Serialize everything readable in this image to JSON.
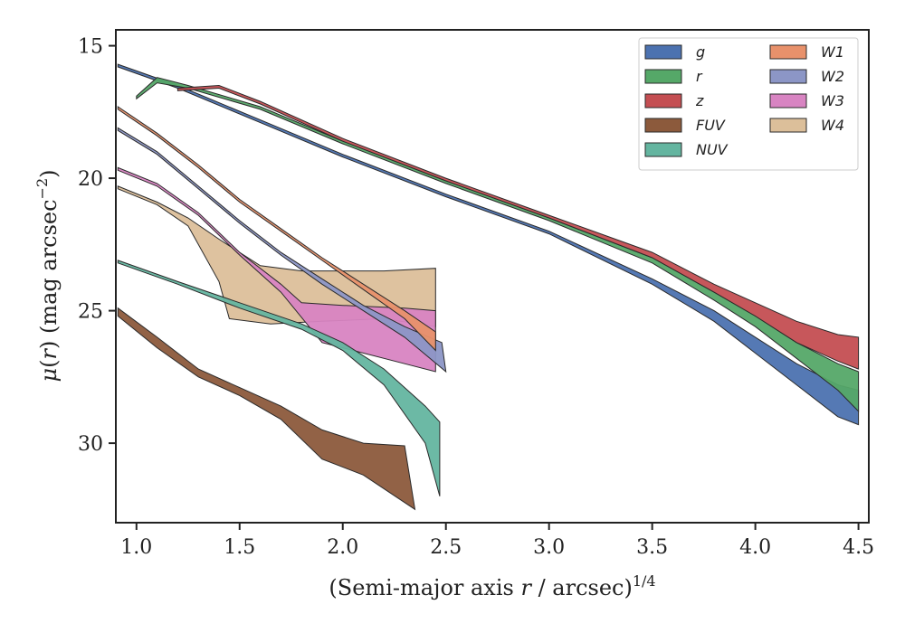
{
  "chart_data": {
    "type": "area",
    "xlabel": "(Semi-major axis r / arcsec)^1/4",
    "xlabel_parts": {
      "pre": "(Semi-major axis ",
      "var": "r",
      "post": " / arcsec)",
      "sup": "1/4"
    },
    "ylabel": "μ(r) (mag arcsec^−2)",
    "ylabel_parts": {
      "mu": "μ",
      "open": "(",
      "var": "r",
      "close": ") (mag arcsec",
      "sup": "−2",
      "end": ")"
    },
    "xlim": [
      0.9,
      4.55
    ],
    "ylim": [
      33.0,
      14.4
    ],
    "y_inverted": true,
    "xticks": [
      "1.0",
      "1.5",
      "2.0",
      "2.5",
      "3.0",
      "3.5",
      "4.0",
      "4.5"
    ],
    "xtick_values": [
      1.0,
      1.5,
      2.0,
      2.5,
      3.0,
      3.5,
      4.0,
      4.5
    ],
    "yticks": [
      "15",
      "20",
      "25",
      "30"
    ],
    "ytick_values": [
      15,
      20,
      25,
      30
    ],
    "grid": false,
    "legend_position": "top-right",
    "legend_columns": 2,
    "series": [
      {
        "name": "g",
        "color": "#4c72b0",
        "upper": [
          [
            0.91,
            15.7
          ],
          [
            1.2,
            16.5
          ],
          [
            1.6,
            17.8
          ],
          [
            2.0,
            19.1
          ],
          [
            2.5,
            20.6
          ],
          [
            3.0,
            22.0
          ],
          [
            3.5,
            23.8
          ],
          [
            3.8,
            25.0
          ],
          [
            4.0,
            26.0
          ],
          [
            4.2,
            27.0
          ],
          [
            4.4,
            27.8
          ],
          [
            4.5,
            28.0
          ]
        ],
        "lower": [
          [
            0.91,
            15.8
          ],
          [
            1.2,
            16.6
          ],
          [
            1.6,
            17.9
          ],
          [
            2.0,
            19.2
          ],
          [
            2.5,
            20.7
          ],
          [
            3.0,
            22.1
          ],
          [
            3.5,
            24.0
          ],
          [
            3.8,
            25.4
          ],
          [
            4.0,
            26.6
          ],
          [
            4.2,
            27.8
          ],
          [
            4.4,
            29.0
          ],
          [
            4.5,
            29.3
          ]
        ]
      },
      {
        "name": "r",
        "color": "#55a868",
        "upper": [
          [
            1.0,
            16.9
          ],
          [
            1.1,
            16.2
          ],
          [
            1.25,
            16.5
          ],
          [
            1.6,
            17.3
          ],
          [
            2.0,
            18.6
          ],
          [
            2.5,
            20.1
          ],
          [
            3.0,
            21.5
          ],
          [
            3.5,
            23.0
          ],
          [
            3.8,
            24.3
          ],
          [
            4.0,
            25.2
          ],
          [
            4.2,
            26.2
          ],
          [
            4.4,
            27.0
          ],
          [
            4.5,
            27.3
          ]
        ],
        "lower": [
          [
            1.0,
            17.0
          ],
          [
            1.1,
            16.4
          ],
          [
            1.25,
            16.6
          ],
          [
            1.6,
            17.4
          ],
          [
            2.0,
            18.7
          ],
          [
            2.5,
            20.2
          ],
          [
            3.0,
            21.6
          ],
          [
            3.5,
            23.2
          ],
          [
            3.8,
            24.6
          ],
          [
            4.0,
            25.6
          ],
          [
            4.2,
            26.8
          ],
          [
            4.4,
            28.0
          ],
          [
            4.5,
            28.8
          ]
        ]
      },
      {
        "name": "z",
        "color": "#c44e52",
        "upper": [
          [
            1.2,
            16.6
          ],
          [
            1.4,
            16.5
          ],
          [
            1.6,
            17.1
          ],
          [
            2.0,
            18.5
          ],
          [
            2.5,
            20.0
          ],
          [
            3.0,
            21.4
          ],
          [
            3.5,
            22.8
          ],
          [
            3.8,
            24.0
          ],
          [
            4.0,
            24.7
          ],
          [
            4.2,
            25.4
          ],
          [
            4.4,
            25.9
          ],
          [
            4.5,
            26.0
          ]
        ],
        "lower": [
          [
            1.2,
            16.7
          ],
          [
            1.4,
            16.6
          ],
          [
            1.6,
            17.2
          ],
          [
            2.0,
            18.6
          ],
          [
            2.5,
            20.1
          ],
          [
            3.0,
            21.5
          ],
          [
            3.5,
            23.0
          ],
          [
            3.8,
            24.3
          ],
          [
            4.0,
            25.2
          ],
          [
            4.2,
            26.2
          ],
          [
            4.4,
            26.9
          ],
          [
            4.5,
            27.2
          ]
        ]
      },
      {
        "name": "FUV",
        "color": "#8c5a3c",
        "upper": [
          [
            0.91,
            24.9
          ],
          [
            1.1,
            26.0
          ],
          [
            1.3,
            27.2
          ],
          [
            1.5,
            27.9
          ],
          [
            1.7,
            28.6
          ],
          [
            1.9,
            29.5
          ],
          [
            2.1,
            30.0
          ],
          [
            2.3,
            30.1
          ]
        ],
        "lower": [
          [
            0.91,
            25.2
          ],
          [
            1.1,
            26.4
          ],
          [
            1.3,
            27.5
          ],
          [
            1.5,
            28.2
          ],
          [
            1.7,
            29.1
          ],
          [
            1.9,
            30.6
          ],
          [
            2.1,
            31.2
          ],
          [
            2.35,
            32.5
          ]
        ]
      },
      {
        "name": "NUV",
        "color": "#64b5a0",
        "upper": [
          [
            0.91,
            23.1
          ],
          [
            1.2,
            23.9
          ],
          [
            1.5,
            24.7
          ],
          [
            1.8,
            25.5
          ],
          [
            2.0,
            26.2
          ],
          [
            2.2,
            27.2
          ],
          [
            2.4,
            28.6
          ],
          [
            2.47,
            29.2
          ]
        ],
        "lower": [
          [
            0.91,
            23.2
          ],
          [
            1.2,
            24.0
          ],
          [
            1.5,
            24.9
          ],
          [
            1.8,
            25.7
          ],
          [
            2.0,
            26.5
          ],
          [
            2.2,
            27.8
          ],
          [
            2.4,
            30.0
          ],
          [
            2.47,
            32.0
          ]
        ]
      },
      {
        "name": "W1",
        "color": "#e8916b",
        "upper": [
          [
            0.91,
            17.3
          ],
          [
            1.1,
            18.3
          ],
          [
            1.3,
            19.5
          ],
          [
            1.5,
            20.8
          ],
          [
            1.7,
            21.9
          ],
          [
            1.9,
            23.0
          ],
          [
            2.1,
            24.0
          ],
          [
            2.3,
            25.0
          ],
          [
            2.45,
            25.8
          ]
        ],
        "lower": [
          [
            0.91,
            17.4
          ],
          [
            1.1,
            18.4
          ],
          [
            1.3,
            19.6
          ],
          [
            1.5,
            20.9
          ],
          [
            1.7,
            22.0
          ],
          [
            1.9,
            23.1
          ],
          [
            2.1,
            24.2
          ],
          [
            2.3,
            25.3
          ],
          [
            2.45,
            26.5
          ]
        ]
      },
      {
        "name": "W2",
        "color": "#8c96c6",
        "upper": [
          [
            0.91,
            18.1
          ],
          [
            1.1,
            19.0
          ],
          [
            1.3,
            20.3
          ],
          [
            1.5,
            21.6
          ],
          [
            1.7,
            22.8
          ],
          [
            1.9,
            23.8
          ],
          [
            2.1,
            24.8
          ],
          [
            2.3,
            25.6
          ],
          [
            2.48,
            26.2
          ]
        ],
        "lower": [
          [
            0.91,
            18.2
          ],
          [
            1.1,
            19.1
          ],
          [
            1.3,
            20.4
          ],
          [
            1.5,
            21.7
          ],
          [
            1.7,
            22.9
          ],
          [
            1.9,
            24.0
          ],
          [
            2.1,
            25.0
          ],
          [
            2.3,
            26.0
          ],
          [
            2.5,
            27.3
          ]
        ]
      },
      {
        "name": "W3",
        "color": "#d884c2",
        "upper": [
          [
            0.91,
            19.6
          ],
          [
            1.1,
            20.2
          ],
          [
            1.3,
            21.3
          ],
          [
            1.5,
            22.8
          ],
          [
            1.7,
            24.0
          ],
          [
            1.8,
            24.7
          ],
          [
            2.0,
            24.8
          ],
          [
            2.3,
            24.9
          ],
          [
            2.45,
            25.0
          ]
        ],
        "lower": [
          [
            0.91,
            19.7
          ],
          [
            1.1,
            20.3
          ],
          [
            1.3,
            21.4
          ],
          [
            1.5,
            22.9
          ],
          [
            1.7,
            24.3
          ],
          [
            1.9,
            26.2
          ],
          [
            2.05,
            26.5
          ],
          [
            2.3,
            27.0
          ],
          [
            2.45,
            27.3
          ]
        ]
      },
      {
        "name": "W4",
        "color": "#dcbf9a",
        "upper": [
          [
            0.91,
            20.3
          ],
          [
            1.1,
            20.9
          ],
          [
            1.25,
            21.5
          ],
          [
            1.4,
            22.3
          ],
          [
            1.6,
            23.3
          ],
          [
            1.8,
            23.5
          ],
          [
            2.0,
            23.5
          ],
          [
            2.2,
            23.5
          ],
          [
            2.45,
            23.4
          ]
        ],
        "lower": [
          [
            0.91,
            20.4
          ],
          [
            1.1,
            21.0
          ],
          [
            1.25,
            21.8
          ],
          [
            1.4,
            23.9
          ],
          [
            1.45,
            25.3
          ],
          [
            1.65,
            25.5
          ],
          [
            1.9,
            25.4
          ],
          [
            2.2,
            25.3
          ],
          [
            2.45,
            25.6
          ]
        ]
      }
    ]
  }
}
